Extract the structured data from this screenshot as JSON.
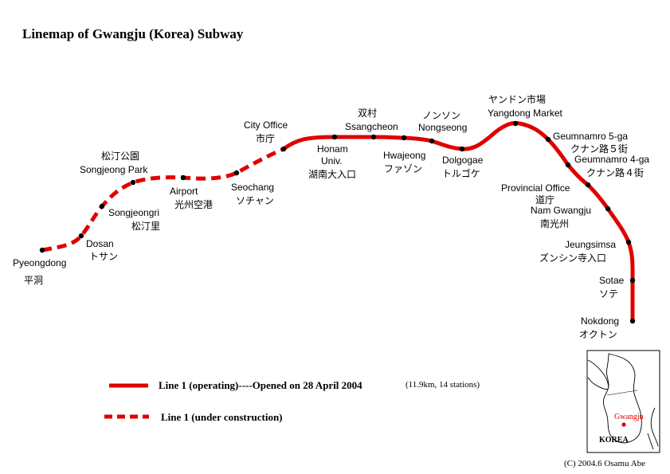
{
  "title": "Linemap of Gwangju (Korea) Subway",
  "line_color": "#e00000",
  "stations": [
    {
      "id": "pyeongdong",
      "en": "Pyeongdong",
      "jp": "平洞"
    },
    {
      "id": "dosan",
      "en": "Dosan",
      "jp": "トサン"
    },
    {
      "id": "songjeongri",
      "en": "Songjeongri",
      "jp": "松汀里"
    },
    {
      "id": "songjeong-park",
      "en": "Songjeong Park",
      "jp": "松汀公園"
    },
    {
      "id": "airport",
      "en": "Airport",
      "jp": "光州空港"
    },
    {
      "id": "seochang",
      "en": "Seochang",
      "jp": "ソチャン"
    },
    {
      "id": "city-office",
      "en": "City Office",
      "jp": "市庁"
    },
    {
      "id": "honam-univ",
      "en": "Honam Univ.",
      "jp": "湖南大入口"
    },
    {
      "id": "ssangcheon",
      "en": "Ssangcheon",
      "jp": "双村"
    },
    {
      "id": "hwajeong",
      "en": "Hwajeong",
      "jp": "ファゾン"
    },
    {
      "id": "nongseong",
      "en": "Nongseong",
      "jp": "ノンソン"
    },
    {
      "id": "dolgogae",
      "en": "Dolgogae",
      "jp": "トルゴケ"
    },
    {
      "id": "yangdong-market",
      "en": "Yangdong Market",
      "jp": "ヤンドン市場"
    },
    {
      "id": "geumnamro-5ga",
      "en": "Geumnamro 5-ga",
      "jp": "クナン路５街"
    },
    {
      "id": "geumnamro-4ga",
      "en": "Geumnamro 4-ga",
      "jp": "クナン路４街"
    },
    {
      "id": "provincial-office",
      "en": "Provincial Office",
      "jp": "道庁"
    },
    {
      "id": "nam-gwangju",
      "en": "Nam Gwangju",
      "jp": "南光州"
    },
    {
      "id": "jeungsimsa",
      "en": "Jeungsimsa",
      "jp": "ズンシン寺入口"
    },
    {
      "id": "sotae",
      "en": "Sotae",
      "jp": "ソテ"
    },
    {
      "id": "nokdong",
      "en": "Nokdong",
      "jp": "オクトン"
    }
  ],
  "legend": {
    "operating_label": "Line 1 (operating)----Opened on 28 April 2004",
    "operating_note": "(11.9km, 14 stations)",
    "construction_label": "Line 1 (under construction)"
  },
  "inset": {
    "country_label": "KOREA",
    "city_label": "Gwangju"
  },
  "credit": "(C) 2004.6  Osamu Abe"
}
